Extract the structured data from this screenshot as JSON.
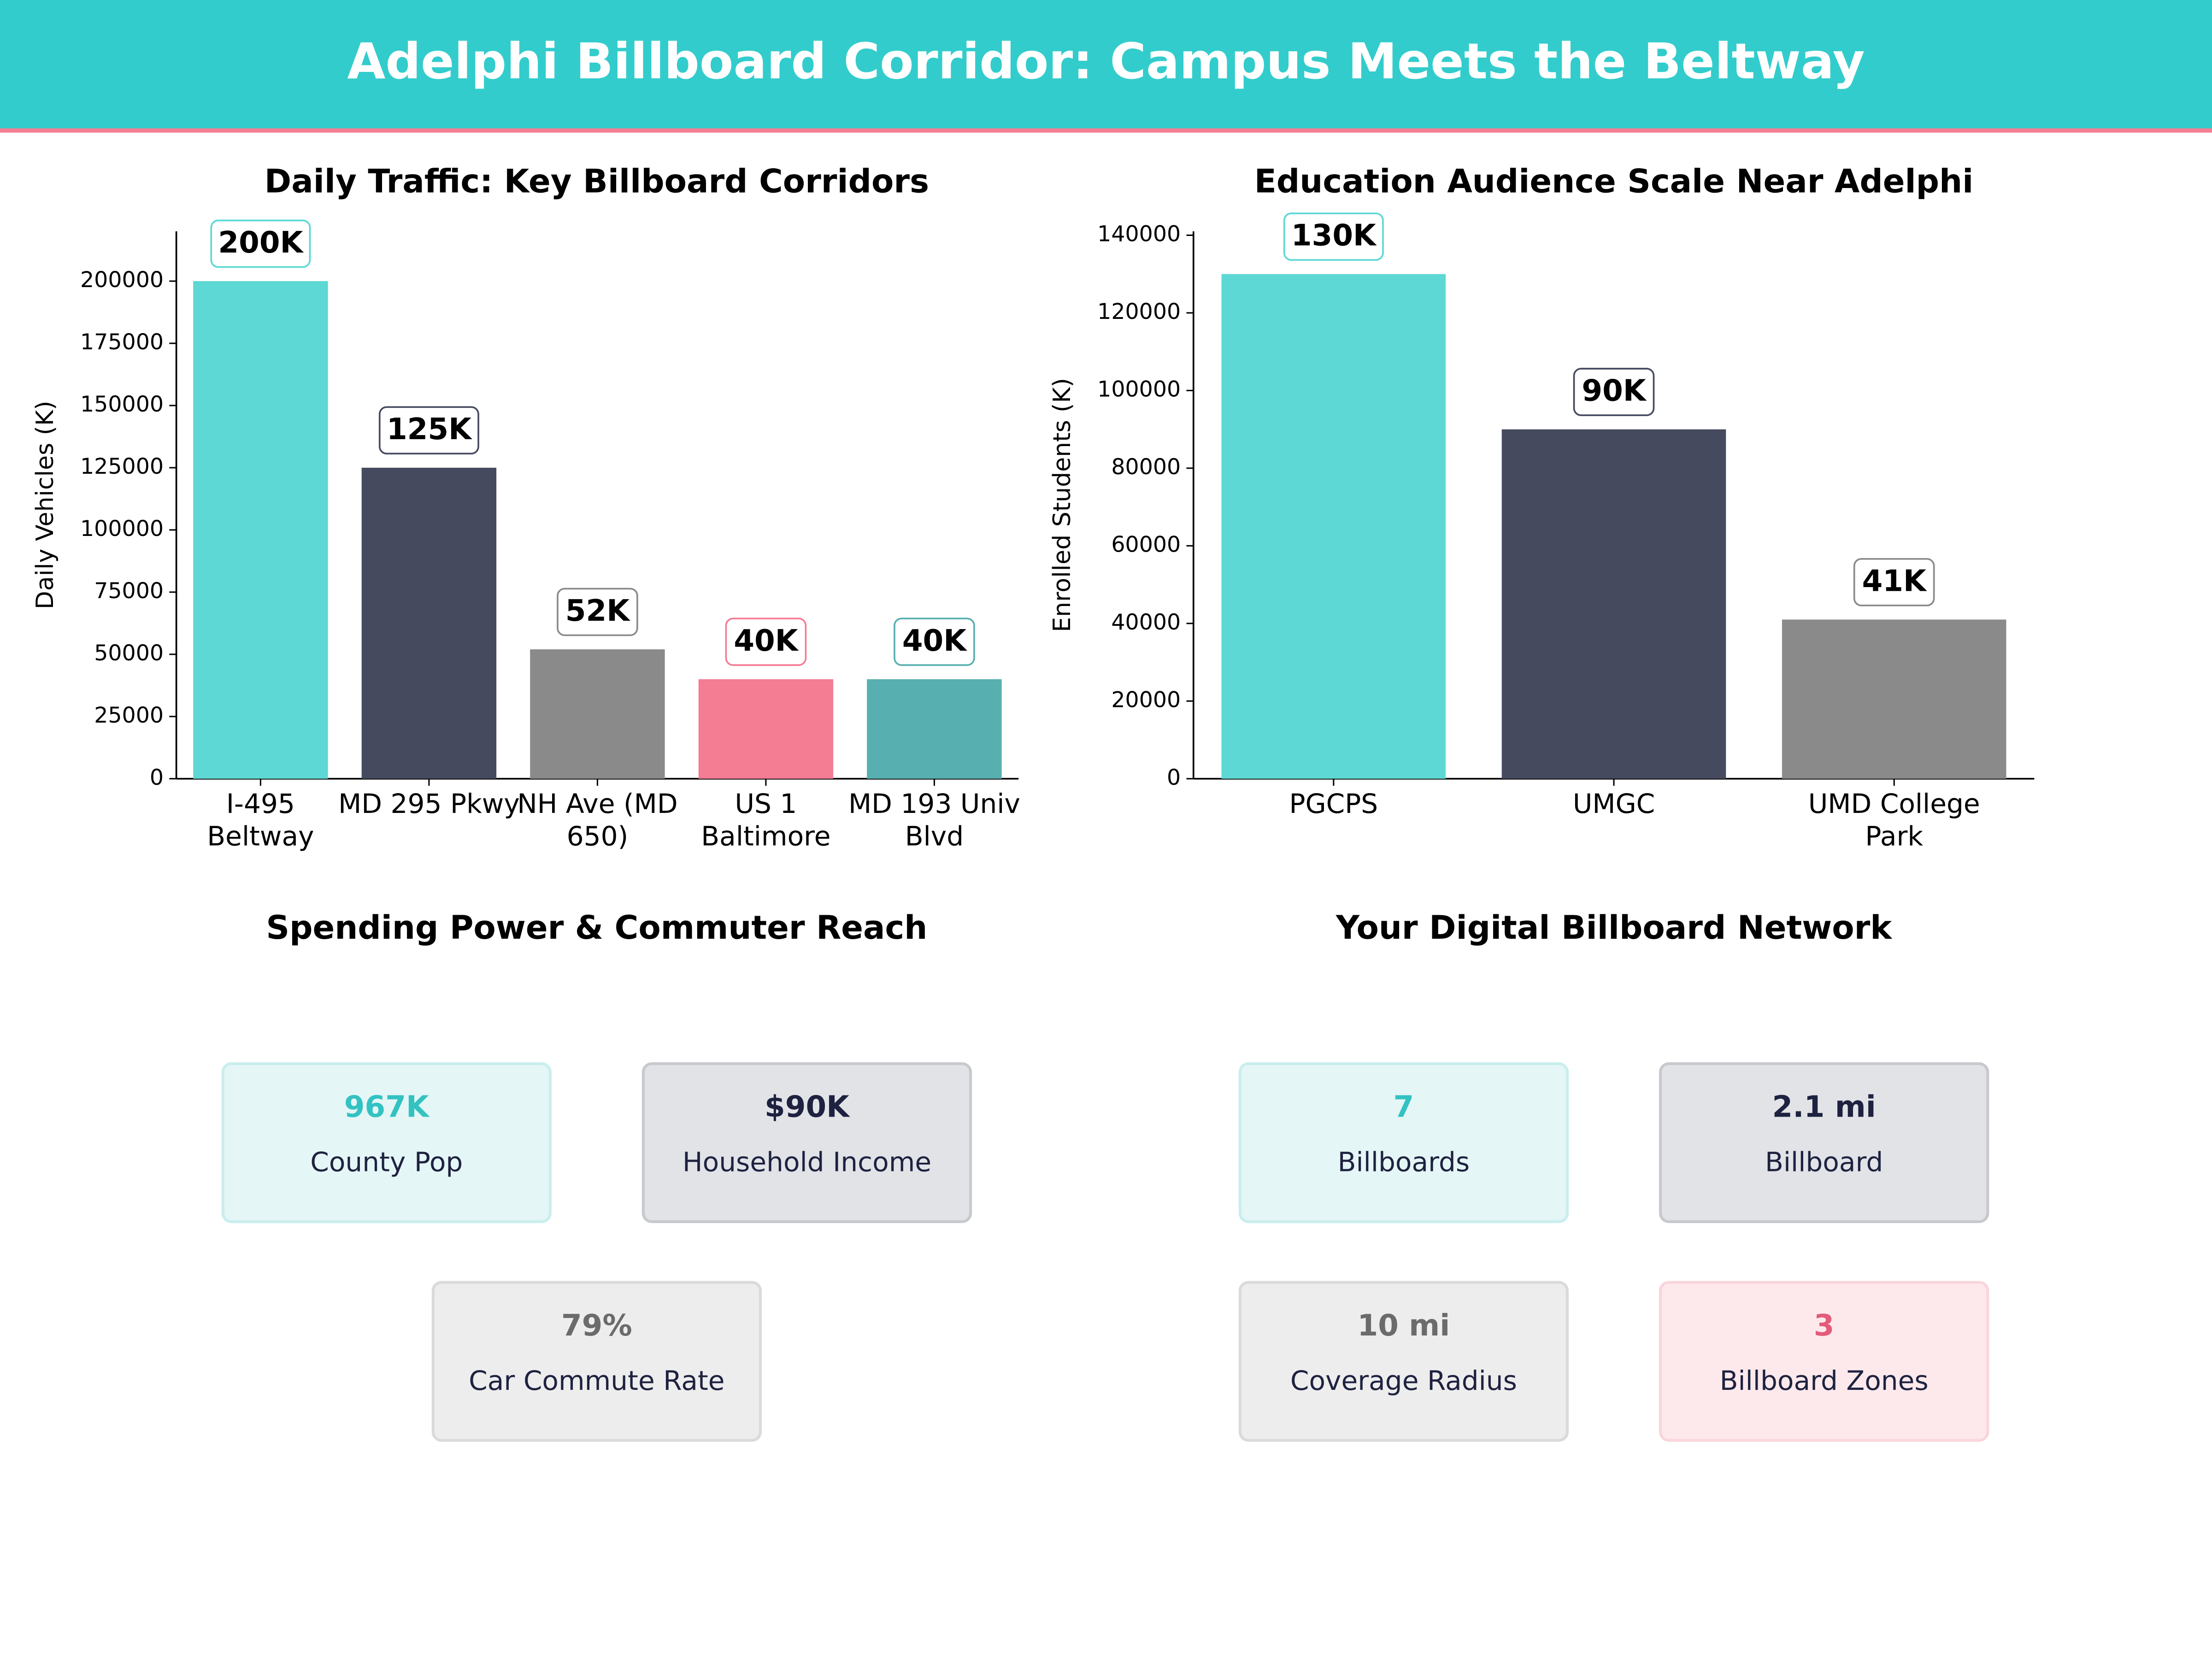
{
  "header": {
    "title": "Adelphi Billboard Corridor: Campus Meets the Beltway"
  },
  "chart_data": [
    {
      "type": "bar",
      "title": "Daily Traffic: Key Billboard Corridors",
      "ylabel": "Daily Vehicles (K)",
      "categories": [
        "I-495 Beltway",
        "MD 295 Pkwy",
        "NH Ave (MD 650)",
        "US 1 Baltimore",
        "MD 193 Univ Blvd"
      ],
      "values": [
        200000,
        125000,
        52000,
        40000,
        40000
      ],
      "value_labels": [
        "200K",
        "125K",
        "52K",
        "40K",
        "40K"
      ],
      "colors": [
        "#5dd8d4",
        "#464a5f",
        "#8a8a8a",
        "#f47c93",
        "#58afaf"
      ],
      "ylim": [
        0,
        220000
      ],
      "yticks": [
        0,
        25000,
        50000,
        75000,
        100000,
        125000,
        150000,
        175000,
        200000
      ],
      "grid": false
    },
    {
      "type": "bar",
      "title": "Education Audience Scale Near Adelphi",
      "ylabel": "Enrolled Students (K)",
      "categories": [
        "PGCPS",
        "UMGC",
        "UMD College Park"
      ],
      "values": [
        130000,
        90000,
        41000
      ],
      "value_labels": [
        "130K",
        "90K",
        "41K"
      ],
      "colors": [
        "#5dd8d4",
        "#464a5f",
        "#8a8a8a"
      ],
      "ylim": [
        0,
        141000
      ],
      "yticks": [
        0,
        20000,
        40000,
        60000,
        80000,
        100000,
        120000,
        140000
      ],
      "grid": false
    }
  ],
  "panels": [
    {
      "title": "Spending Power & Commuter Reach",
      "cards": [
        {
          "value": "967K",
          "label": "County Pop"
        },
        {
          "value": "$90K",
          "label": "Household Income"
        },
        {
          "value": "79%",
          "label": "Car Commute Rate"
        }
      ]
    },
    {
      "title": "Your Digital Billboard Network",
      "cards": [
        {
          "value": "7",
          "label": "Billboards"
        },
        {
          "value": "2.1 mi",
          "label": "Billboard"
        },
        {
          "value": "10 mi",
          "label": "Coverage Radius"
        },
        {
          "value": "3",
          "label": "Billboard Zones"
        }
      ]
    }
  ]
}
